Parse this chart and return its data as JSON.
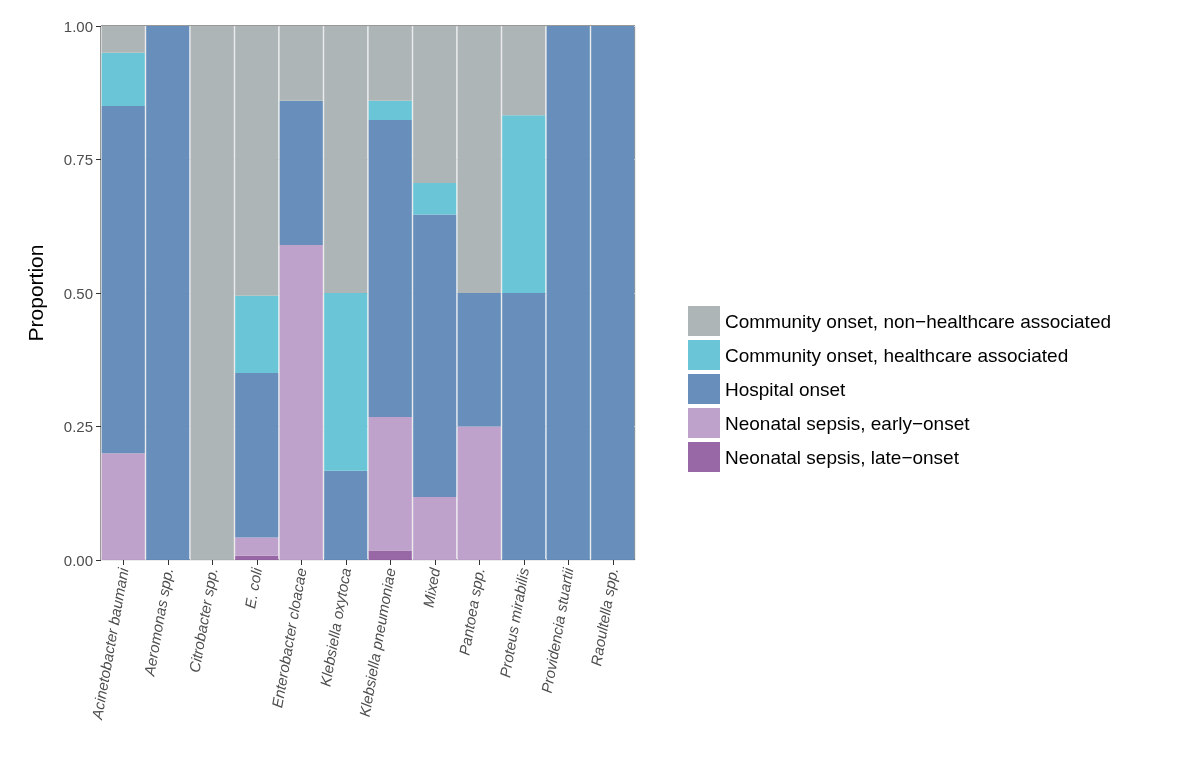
{
  "chart_data": {
    "type": "bar",
    "stacked": true,
    "ylabel": "Proportion",
    "categories": [
      "Acinetobacter baumani",
      "Aeromonas spp.",
      "Citrobacter spp.",
      "E. coli",
      "Enterobacter cloacae",
      "Klebsiella oxytoca",
      "Klebsiella pneumoniae",
      "Mixed",
      "Pantoea spp.",
      "Proteus mirabilis",
      "Providencia stuartii",
      "Raoultella spp."
    ],
    "series": [
      {
        "name": "Neonatal sepsis, late−onset",
        "color": "#915fa1",
        "values": [
          0,
          0,
          0,
          0.008,
          0,
          0,
          0.018,
          0,
          0,
          0,
          0,
          0
        ]
      },
      {
        "name": "Neonatal sepsis, early−onset",
        "color": "#bc9dc8",
        "values": [
          0.2,
          0,
          0,
          0.034,
          0.59,
          0,
          0.25,
          0.118,
          0.25,
          0,
          0,
          0
        ]
      },
      {
        "name": "Hospital onset",
        "color": "#6089b8",
        "values": [
          0.65,
          1,
          0,
          0.308,
          0.27,
          0.167,
          0.556,
          0.529,
          0.25,
          0.5,
          1,
          1
        ]
      },
      {
        "name": "Community onset, healthcare associated",
        "color": "#62c3d4",
        "values": [
          0.1,
          0,
          0,
          0.145,
          0,
          0.333,
          0.036,
          0.059,
          0,
          0.333,
          0,
          0
        ]
      },
      {
        "name": "Community onset, non−healthcare associated",
        "color": "#a9b1b2",
        "values": [
          0.05,
          0,
          1,
          0.505,
          0.14,
          0.5,
          0.14,
          0.294,
          0.5,
          0.167,
          0,
          0
        ]
      }
    ],
    "ylim": [
      0,
      1
    ],
    "yticks": [
      {
        "value": 0,
        "label": "0.00"
      },
      {
        "value": 0.25,
        "label": "0.25"
      },
      {
        "value": 0.5,
        "label": "0.50"
      },
      {
        "value": 0.75,
        "label": "0.75"
      },
      {
        "value": 1,
        "label": "1.00"
      }
    ],
    "grid": true,
    "legend": "right"
  }
}
